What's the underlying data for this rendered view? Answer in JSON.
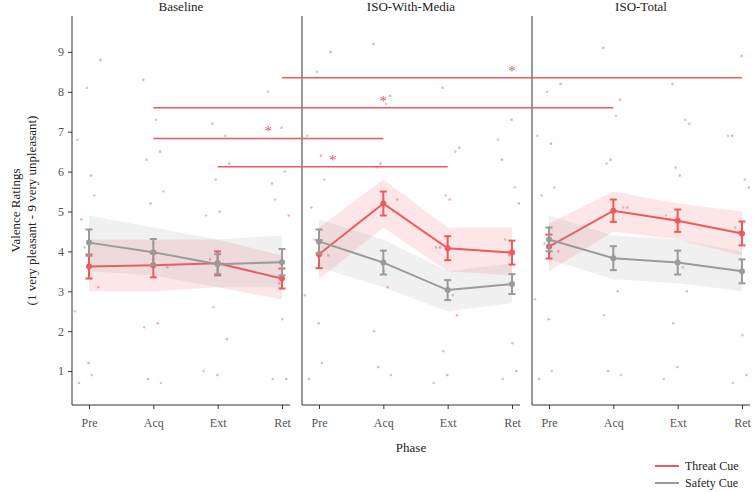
{
  "chart_data": {
    "type": "line",
    "x_label": "Phase",
    "y_label": [
      "Valence Ratings",
      "(1 very pleasant - 9 very unpleasant)"
    ],
    "categories": [
      "Pre",
      "Acq",
      "Ext",
      "Ret"
    ],
    "ylim": [
      0.15,
      9.9
    ],
    "yticks": [
      1,
      2,
      3,
      4,
      5,
      6,
      7,
      8,
      9
    ],
    "legend": "bottom right",
    "series": [
      {
        "name": "Threat Cue",
        "color": "#f0585c"
      },
      {
        "name": "Safety Cue",
        "color": "#9a9a9a"
      }
    ],
    "panels": [
      {
        "title": "Baseline",
        "series": [
          {
            "values": [
              3.62,
              3.65,
              3.7,
              3.32
            ],
            "error": [
              0.3,
              0.3,
              0.3,
              0.25
            ],
            "ribbon_low": [
              3.0,
              3.0,
              3.1,
              2.8
            ],
            "ribbon_high": [
              4.3,
              4.3,
              4.3,
              3.9
            ],
            "points": [
              [
                0.7,
                1.2,
                3.1,
                4.8,
                5.9,
                8.8
              ],
              [
                0.8,
                2.2,
                3.6,
                5.2,
                6.5,
                8.3
              ],
              [
                0.9,
                1.8,
                3.8,
                5.0,
                6.2,
                7.2
              ],
              [
                0.8,
                1.5,
                3.2,
                4.9,
                5.7,
                7.1
              ]
            ]
          },
          {
            "values": [
              4.22,
              3.98,
              3.68,
              3.73
            ],
            "error": [
              0.33,
              0.33,
              0.25,
              0.33
            ],
            "ribbon_low": [
              3.5,
              3.4,
              3.1,
              3.1
            ],
            "ribbon_high": [
              4.9,
              4.6,
              4.3,
              4.4
            ],
            "points": [
              [
                0.9,
                2.5,
                4.1,
                5.4,
                6.8,
                8.1
              ],
              [
                0.7,
                2.1,
                4.2,
                5.5,
                6.3,
                7.3
              ],
              [
                1.0,
                2.6,
                3.7,
                4.9,
                5.8,
                6.9
              ],
              [
                0.8,
                2.3,
                3.8,
                5.3,
                6.0,
                8.0
              ]
            ]
          }
        ]
      },
      {
        "title": "ISO-With-Media",
        "series": [
          {
            "values": [
              3.93,
              5.2,
              4.08,
              3.97
            ],
            "error": [
              0.35,
              0.3,
              0.3,
              0.3
            ],
            "ribbon_low": [
              3.3,
              4.6,
              3.5,
              3.4
            ],
            "ribbon_high": [
              4.6,
              5.8,
              4.6,
              4.6
            ],
            "points": [
              [
                0.8,
                2.2,
                3.9,
                5.1,
                6.4,
                9.0
              ],
              [
                1.1,
                3.1,
                5.3,
                6.2,
                7.9,
                9.2
              ],
              [
                0.9,
                2.4,
                4.1,
                5.3,
                6.6,
                8.1
              ],
              [
                1.0,
                2.6,
                3.9,
                5.2,
                6.3,
                7.3
              ]
            ]
          },
          {
            "values": [
              4.25,
              3.72,
              3.03,
              3.18
            ],
            "error": [
              0.3,
              0.3,
              0.25,
              0.25
            ],
            "ribbon_low": [
              3.6,
              3.1,
              2.5,
              2.7
            ],
            "ribbon_high": [
              4.8,
              4.3,
              3.5,
              3.7
            ],
            "points": [
              [
                1.2,
                2.9,
                4.3,
                5.8,
                6.9,
                8.5
              ],
              [
                0.9,
                2.0,
                3.5,
                5.0,
                6.1,
                7.7
              ],
              [
                0.7,
                1.5,
                2.9,
                4.1,
                5.4,
                6.5
              ],
              [
                0.8,
                1.7,
                3.0,
                4.3,
                5.6,
                6.8
              ]
            ]
          }
        ]
      },
      {
        "title": "ISO-Total",
        "series": [
          {
            "values": [
              4.12,
              5.02,
              4.77,
              4.45
            ],
            "error": [
              0.3,
              0.28,
              0.28,
              0.3
            ],
            "ribbon_low": [
              3.5,
              4.5,
              4.3,
              3.9
            ],
            "ribbon_high": [
              4.7,
              5.5,
              5.2,
              5.0
            ],
            "points": [
              [
                0.8,
                2.3,
                4.0,
                5.4,
                6.7,
                8.2
              ],
              [
                1.0,
                3.0,
                5.1,
                6.3,
                7.8,
                9.1
              ],
              [
                1.1,
                3.0,
                4.8,
                5.9,
                7.2,
                8.2
              ],
              [
                0.9,
                2.7,
                4.5,
                5.6,
                6.9,
                8.9
              ]
            ]
          },
          {
            "values": [
              4.3,
              3.83,
              3.72,
              3.5
            ],
            "error": [
              0.3,
              0.3,
              0.3,
              0.3
            ],
            "ribbon_low": [
              3.8,
              3.3,
              3.2,
              3.0
            ],
            "ribbon_high": [
              4.9,
              4.4,
              4.3,
              4.0
            ],
            "points": [
              [
                1.0,
                2.8,
                4.2,
                5.6,
                6.9,
                8.0
              ],
              [
                0.9,
                2.4,
                3.9,
                5.1,
                6.2,
                7.4
              ],
              [
                0.8,
                2.2,
                3.6,
                4.9,
                6.1,
                7.3
              ],
              [
                0.7,
                1.9,
                3.4,
                4.6,
                5.8,
                6.9
              ]
            ]
          }
        ]
      }
    ],
    "comparisons": [
      {
        "from": [
          0,
          3
        ],
        "to": [
          2,
          3
        ],
        "y": 8.35,
        "label": "*"
      },
      {
        "from": [
          0,
          1
        ],
        "to": [
          2,
          1
        ],
        "y": 7.6,
        "label": "*"
      },
      {
        "from": [
          0,
          1
        ],
        "to": [
          1,
          1
        ],
        "y": 6.83,
        "label": "*"
      },
      {
        "from": [
          0,
          2
        ],
        "to": [
          1,
          2
        ],
        "y": 6.12,
        "label": "*"
      }
    ]
  }
}
